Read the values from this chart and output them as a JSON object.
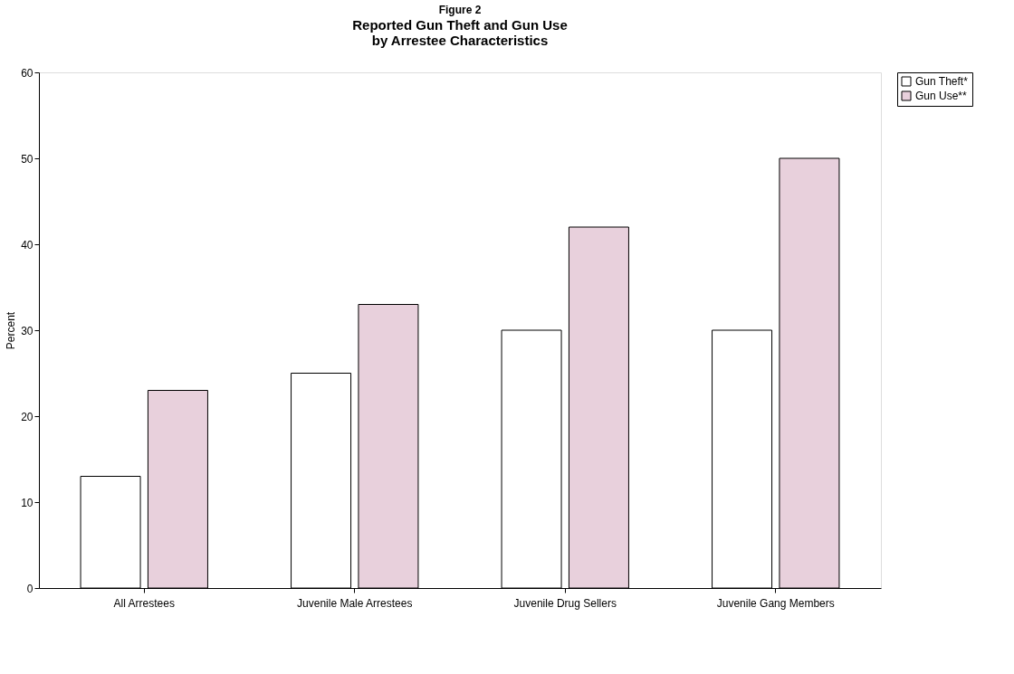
{
  "chart_data": {
    "type": "bar",
    "title": "Figure 2",
    "subtitle": "Reported Gun Theft and Gun Use\nby Arrestee Characteristics",
    "ylabel": "Percent",
    "categories": [
      "All Arrestees",
      "Juvenile Male Arrestees",
      "Juvenile Drug Sellers",
      "Juvenile Gang Members"
    ],
    "series": [
      {
        "name": "Gun Theft*",
        "color": "#ffffff",
        "values": [
          13,
          25,
          30,
          30
        ]
      },
      {
        "name": "Gun Use**",
        "color": "#e8d0dc",
        "values": [
          23,
          33,
          42,
          50
        ]
      }
    ],
    "ylim": [
      0,
      60
    ],
    "yticks": [
      0,
      10,
      20,
      30,
      40,
      50,
      60
    ],
    "grid": false,
    "legend": "right"
  }
}
